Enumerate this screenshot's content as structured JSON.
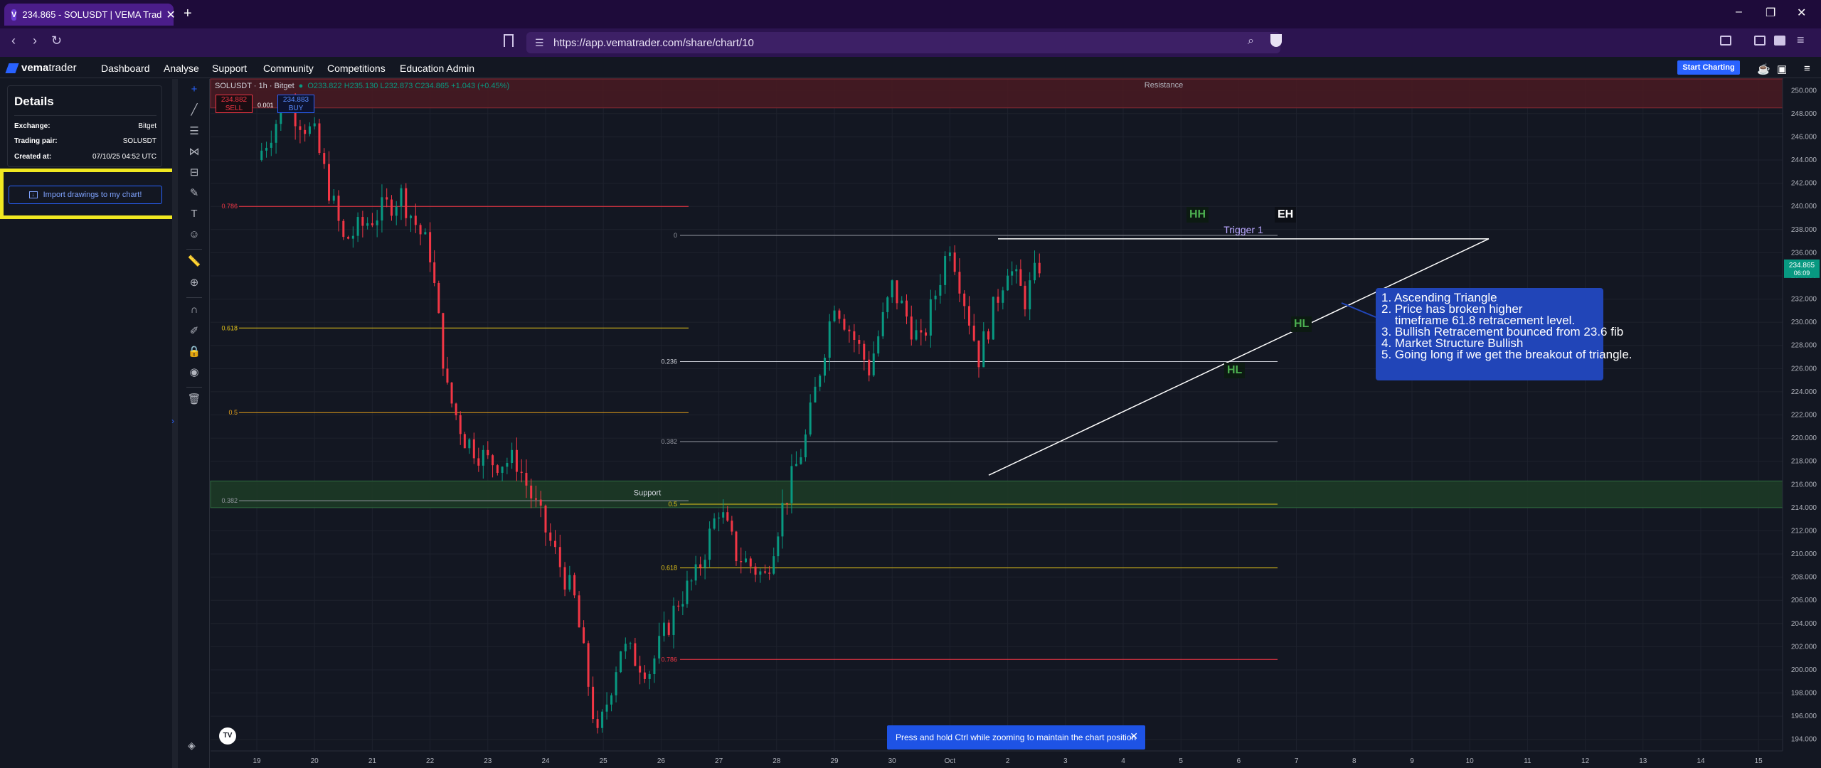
{
  "browser": {
    "tab_title": "234.865 - SOLUSDT | VEMA Trad",
    "tab_close": "✕",
    "new_tab": "+",
    "url": "https://app.vematrader.com/share/chart/10",
    "win_min": "–",
    "win_max": "❐",
    "win_close": "✕"
  },
  "nav": {
    "logo_a": "vema",
    "logo_b": "trader",
    "items": [
      "Dashboard",
      "Analyse",
      "Support",
      "Community",
      "Competitions",
      "Education Admin"
    ],
    "start_charting": "Start Charting"
  },
  "details": {
    "title": "Details",
    "rows": [
      {
        "key": "Exchange:",
        "value": "Bitget"
      },
      {
        "key": "Trading pair:",
        "value": "SOLUSDT"
      },
      {
        "key": "Created at:",
        "value": "07/10/25 04:52 UTC"
      }
    ],
    "import_label": "Import drawings to my chart!"
  },
  "chart": {
    "symbol": "SOLUSDT · 1h · Bitget",
    "ohlc": "O233.822 H235.130 L232.873 C234.865 +1.043 (+0.45%)",
    "sell_price": "234.882",
    "sell_label": "SELL",
    "buy_price": "234.883",
    "buy_label": "BUY",
    "spread": "0.001",
    "last_price": "234.865",
    "countdown": "06:09",
    "resistance_label": "Resistance",
    "support_label": "Support",
    "trigger_label": "Trigger 1",
    "tags": {
      "hh": "HH",
      "eh": "EH",
      "hl1": "HL",
      "hl2": "HL"
    },
    "callout": [
      "1. Ascending Triangle",
      "2. Price has broken higher",
      "    timeframe 61.8 retracement level.",
      "3. Bullish Retracement bounced from 23.6 fib",
      "4. Market Structure Bullish",
      "5. Going long if we get the breakout of triangle."
    ],
    "toast": "Press and hold Ctrl while zooming to maintain the chart position",
    "toast_close": "✕",
    "tv_logo": "TV"
  },
  "chart_data": {
    "type": "candlestick",
    "symbol": "SOLUSDT",
    "timeframe": "1h",
    "exchange": "Bitget",
    "y_ticks": [
      "250.000",
      "248.000",
      "246.000",
      "244.000",
      "242.000",
      "240.000",
      "238.000",
      "236.000",
      "234.000",
      "232.000",
      "230.000",
      "228.000",
      "226.000",
      "224.000",
      "222.000",
      "220.000",
      "218.000",
      "216.000",
      "214.000",
      "212.000",
      "210.000",
      "208.000",
      "206.000",
      "204.000",
      "202.000",
      "200.000",
      "198.000",
      "196.000",
      "194.000"
    ],
    "x_ticks": [
      "19",
      "20",
      "21",
      "22",
      "23",
      "24",
      "25",
      "26",
      "27",
      "28",
      "29",
      "30",
      "Oct",
      "2",
      "3",
      "4",
      "5",
      "6",
      "7",
      "8",
      "9",
      "10",
      "11",
      "12",
      "13",
      "14",
      "15"
    ],
    "ylim": [
      193,
      251
    ],
    "last_price": 234.865,
    "resistance_zone": [
      248.5,
      251
    ],
    "support_zone": [
      214,
      216.3
    ],
    "fib_left": [
      {
        "label": "0.786",
        "price": 240.0,
        "color": "#f23645"
      },
      {
        "label": "0.618",
        "price": 229.5,
        "color": "#e6c619"
      },
      {
        "label": "0.5",
        "price": 222.2,
        "color": "#e6a119"
      },
      {
        "label": "0.382",
        "price": 214.6,
        "color": "#9598a1"
      }
    ],
    "fib_right": [
      {
        "label": "0",
        "price": 237.5,
        "color": "#9598a1"
      },
      {
        "label": "0.236",
        "price": 226.6,
        "color": "#d1d4dc"
      },
      {
        "label": "0.382",
        "price": 219.7,
        "color": "#9598a1"
      },
      {
        "label": "0.5",
        "price": 214.3,
        "color": "#e6c619"
      },
      {
        "label": "0.618",
        "price": 208.8,
        "color": "#e6c619"
      },
      {
        "label": "0.786",
        "price": 200.9,
        "color": "#f23645"
      }
    ],
    "trend_levels": {
      "trigger_price": 237.2,
      "trend_start": [
        0.31,
        216.8
      ],
      "trend_end": [
        0.53,
        237.2
      ]
    },
    "price_path": [
      [
        0,
        244
      ],
      [
        0.5,
        249
      ],
      [
        1.0,
        246
      ],
      [
        1.5,
        237
      ],
      [
        2.0,
        239
      ],
      [
        2.5,
        241
      ],
      [
        3.0,
        236
      ],
      [
        3.3,
        224
      ],
      [
        3.6,
        220
      ],
      [
        4.0,
        218
      ],
      [
        4.5,
        218
      ],
      [
        5.0,
        212
      ],
      [
        5.5,
        206
      ],
      [
        5.9,
        194
      ],
      [
        6.3,
        202
      ],
      [
        6.8,
        200
      ],
      [
        7.3,
        206
      ],
      [
        7.6,
        208
      ],
      [
        8.0,
        214
      ],
      [
        8.3,
        210
      ],
      [
        8.8,
        208
      ],
      [
        9.1,
        214
      ],
      [
        9.5,
        220
      ],
      [
        10.0,
        232
      ],
      [
        10.6,
        226
      ],
      [
        11.0,
        233
      ],
      [
        11.5,
        228
      ],
      [
        12.0,
        237
      ],
      [
        12.5,
        227
      ],
      [
        13.0,
        235
      ],
      [
        13.3,
        232
      ],
      [
        13.55,
        235
      ]
    ]
  }
}
